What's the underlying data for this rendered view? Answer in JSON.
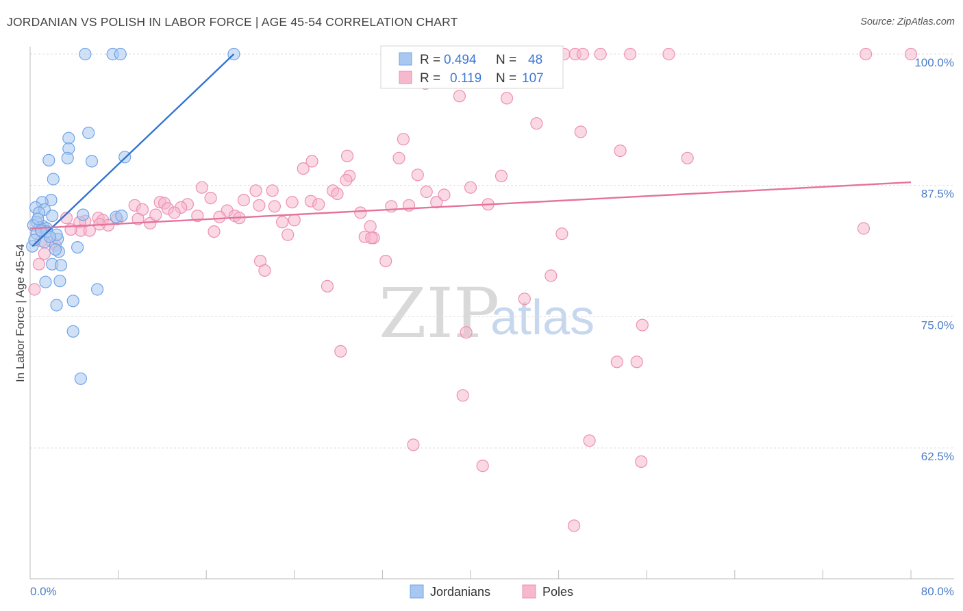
{
  "header": {
    "title": "JORDANIAN VS POLISH IN LABOR FORCE | AGE 45-54 CORRELATION CHART",
    "source": "Source: ZipAtlas.com"
  },
  "watermark": {
    "zip": "ZIP",
    "atlas": "atlas"
  },
  "legend_top": {
    "rows": [
      {
        "r_label": "R =",
        "r_value": "0.494",
        "n_label": "N =",
        "n_value": "48",
        "color": "#a9c8f0"
      },
      {
        "r_label": "R =",
        "r_value": "0.119",
        "n_label": "N =",
        "n_value": "107",
        "color": "#f5b8cd"
      }
    ]
  },
  "legend_bottom": {
    "items": [
      {
        "label": "Jordanians",
        "color": "#a9c8f0"
      },
      {
        "label": "Poles",
        "color": "#f5b8cd"
      }
    ]
  },
  "chart_data": {
    "type": "scatter",
    "title": "JORDANIAN VS POLISH IN LABOR FORCE | AGE 45-54 CORRELATION CHART",
    "xlabel": "",
    "ylabel": "In Labor Force | Age 45-54",
    "xlim": [
      0,
      80
    ],
    "ylim": [
      50,
      101.8
    ],
    "x_tick_labels": [
      {
        "value": 0,
        "label": "0.0%"
      },
      {
        "value": 80,
        "label": "80.0%"
      }
    ],
    "y_tick_labels": [
      {
        "value": 62.5,
        "label": "62.5%"
      },
      {
        "value": 75,
        "label": "75.0%"
      },
      {
        "value": 87.5,
        "label": "87.5%"
      },
      {
        "value": 100,
        "label": "100.0%"
      }
    ],
    "grid": "horizontal dashed",
    "legend_placement": "top-center",
    "series": [
      {
        "name": "Jordanians",
        "color": "#6fa3e6",
        "fill": "#a9c8f0",
        "trend": {
          "x": [
            0.2,
            18.5
          ],
          "y": [
            81.7,
            100.0
          ],
          "color": "#2f74d0"
        },
        "points": [
          [
            5.0,
            100.0
          ],
          [
            7.5,
            100.0
          ],
          [
            8.2,
            100.0
          ],
          [
            18.5,
            100.0
          ],
          [
            5.3,
            92.5
          ],
          [
            3.5,
            92.0
          ],
          [
            3.5,
            91.0
          ],
          [
            3.4,
            90.1
          ],
          [
            5.6,
            89.8
          ],
          [
            8.6,
            90.2
          ],
          [
            1.7,
            89.9
          ],
          [
            2.1,
            88.1
          ],
          [
            1.9,
            86.1
          ],
          [
            1.1,
            85.9
          ],
          [
            0.5,
            85.4
          ],
          [
            1.3,
            85.2
          ],
          [
            0.8,
            84.9
          ],
          [
            2.0,
            84.6
          ],
          [
            0.6,
            84.0
          ],
          [
            1.2,
            83.6
          ],
          [
            0.9,
            83.5
          ],
          [
            1.5,
            83.4
          ],
          [
            0.3,
            83.7
          ],
          [
            0.6,
            82.9
          ],
          [
            2.5,
            82.4
          ],
          [
            0.2,
            81.7
          ],
          [
            2.6,
            81.2
          ],
          [
            2.3,
            81.4
          ],
          [
            4.3,
            81.6
          ],
          [
            1.5,
            83.1
          ],
          [
            2.4,
            82.8
          ],
          [
            1.3,
            82.1
          ],
          [
            2.0,
            80.0
          ],
          [
            2.8,
            79.9
          ],
          [
            1.4,
            78.3
          ],
          [
            2.7,
            78.4
          ],
          [
            6.1,
            77.6
          ],
          [
            3.9,
            76.5
          ],
          [
            2.4,
            76.1
          ],
          [
            3.9,
            73.6
          ],
          [
            4.6,
            69.1
          ],
          [
            4.8,
            84.7
          ],
          [
            7.8,
            84.5
          ],
          [
            0.7,
            84.3
          ],
          [
            1.0,
            83.2
          ],
          [
            1.8,
            82.6
          ],
          [
            0.4,
            82.3
          ],
          [
            8.3,
            84.6
          ]
        ]
      },
      {
        "name": "Poles",
        "color": "#ee8fb1",
        "fill": "#f5b8cd",
        "trend": {
          "x": [
            0.0,
            80.0
          ],
          "y": [
            83.4,
            87.8
          ],
          "color": "#e5729c"
        },
        "points": [
          [
            48.5,
            100.0
          ],
          [
            49.5,
            100.0
          ],
          [
            50.2,
            100.0
          ],
          [
            51.8,
            100.0
          ],
          [
            54.5,
            100.0
          ],
          [
            58.0,
            100.0
          ],
          [
            75.9,
            100.0
          ],
          [
            80.0,
            100.0
          ],
          [
            35.4,
            99.9
          ],
          [
            41.8,
            99.9
          ],
          [
            45.4,
            99.9
          ],
          [
            35.9,
            97.2
          ],
          [
            39.0,
            96.0
          ],
          [
            43.3,
            95.8
          ],
          [
            46.0,
            93.4
          ],
          [
            50.0,
            92.6
          ],
          [
            53.6,
            90.8
          ],
          [
            59.7,
            90.1
          ],
          [
            33.9,
            91.9
          ],
          [
            28.8,
            90.3
          ],
          [
            33.5,
            90.1
          ],
          [
            25.6,
            89.8
          ],
          [
            24.8,
            89.1
          ],
          [
            35.2,
            88.5
          ],
          [
            42.8,
            88.4
          ],
          [
            29.0,
            88.4
          ],
          [
            28.7,
            88.0
          ],
          [
            15.6,
            87.3
          ],
          [
            40.0,
            87.3
          ],
          [
            20.5,
            87.0
          ],
          [
            22.0,
            87.0
          ],
          [
            27.5,
            87.0
          ],
          [
            27.9,
            86.7
          ],
          [
            36.0,
            86.9
          ],
          [
            37.6,
            86.6
          ],
          [
            19.4,
            86.1
          ],
          [
            23.8,
            85.9
          ],
          [
            25.5,
            86.0
          ],
          [
            26.2,
            85.7
          ],
          [
            14.3,
            85.7
          ],
          [
            11.8,
            85.9
          ],
          [
            9.5,
            85.6
          ],
          [
            12.2,
            85.8
          ],
          [
            13.7,
            85.4
          ],
          [
            12.5,
            85.3
          ],
          [
            17.9,
            85.1
          ],
          [
            20.8,
            85.6
          ],
          [
            22.2,
            85.5
          ],
          [
            32.8,
            85.5
          ],
          [
            34.4,
            85.6
          ],
          [
            41.6,
            85.7
          ],
          [
            10.2,
            85.2
          ],
          [
            13.1,
            84.9
          ],
          [
            15.2,
            84.6
          ],
          [
            17.2,
            84.5
          ],
          [
            18.6,
            84.6
          ],
          [
            19.0,
            84.4
          ],
          [
            3.3,
            84.4
          ],
          [
            5.0,
            84.1
          ],
          [
            6.2,
            84.4
          ],
          [
            7.9,
            84.3
          ],
          [
            9.8,
            84.3
          ],
          [
            4.5,
            84.0
          ],
          [
            6.6,
            84.2
          ],
          [
            7.1,
            83.7
          ],
          [
            10.9,
            83.9
          ],
          [
            22.9,
            84.0
          ],
          [
            24.0,
            84.2
          ],
          [
            30.9,
            83.6
          ],
          [
            36.9,
            85.9
          ],
          [
            4.6,
            83.2
          ],
          [
            3.7,
            83.3
          ],
          [
            5.4,
            83.2
          ],
          [
            16.7,
            83.1
          ],
          [
            23.4,
            82.8
          ],
          [
            30.4,
            82.6
          ],
          [
            31.2,
            82.5
          ],
          [
            31.0,
            82.5
          ],
          [
            48.3,
            82.9
          ],
          [
            75.7,
            83.4
          ],
          [
            2.0,
            82.1
          ],
          [
            1.0,
            82.2
          ],
          [
            2.3,
            81.8
          ],
          [
            20.9,
            80.3
          ],
          [
            32.3,
            80.3
          ],
          [
            21.3,
            79.4
          ],
          [
            0.8,
            80.0
          ],
          [
            47.3,
            78.9
          ],
          [
            27.0,
            77.9
          ],
          [
            0.4,
            77.6
          ],
          [
            44.9,
            76.7
          ],
          [
            55.6,
            74.2
          ],
          [
            39.6,
            73.5
          ],
          [
            28.2,
            71.7
          ],
          [
            53.3,
            70.7
          ],
          [
            55.1,
            70.7
          ],
          [
            39.3,
            67.5
          ],
          [
            50.8,
            63.2
          ],
          [
            34.8,
            62.8
          ],
          [
            41.1,
            60.8
          ],
          [
            55.5,
            61.2
          ],
          [
            49.4,
            55.1
          ],
          [
            16.4,
            86.3
          ],
          [
            30.0,
            84.9
          ],
          [
            6.3,
            83.8
          ],
          [
            11.4,
            84.7
          ],
          [
            1.3,
            81.0
          ]
        ]
      }
    ]
  }
}
